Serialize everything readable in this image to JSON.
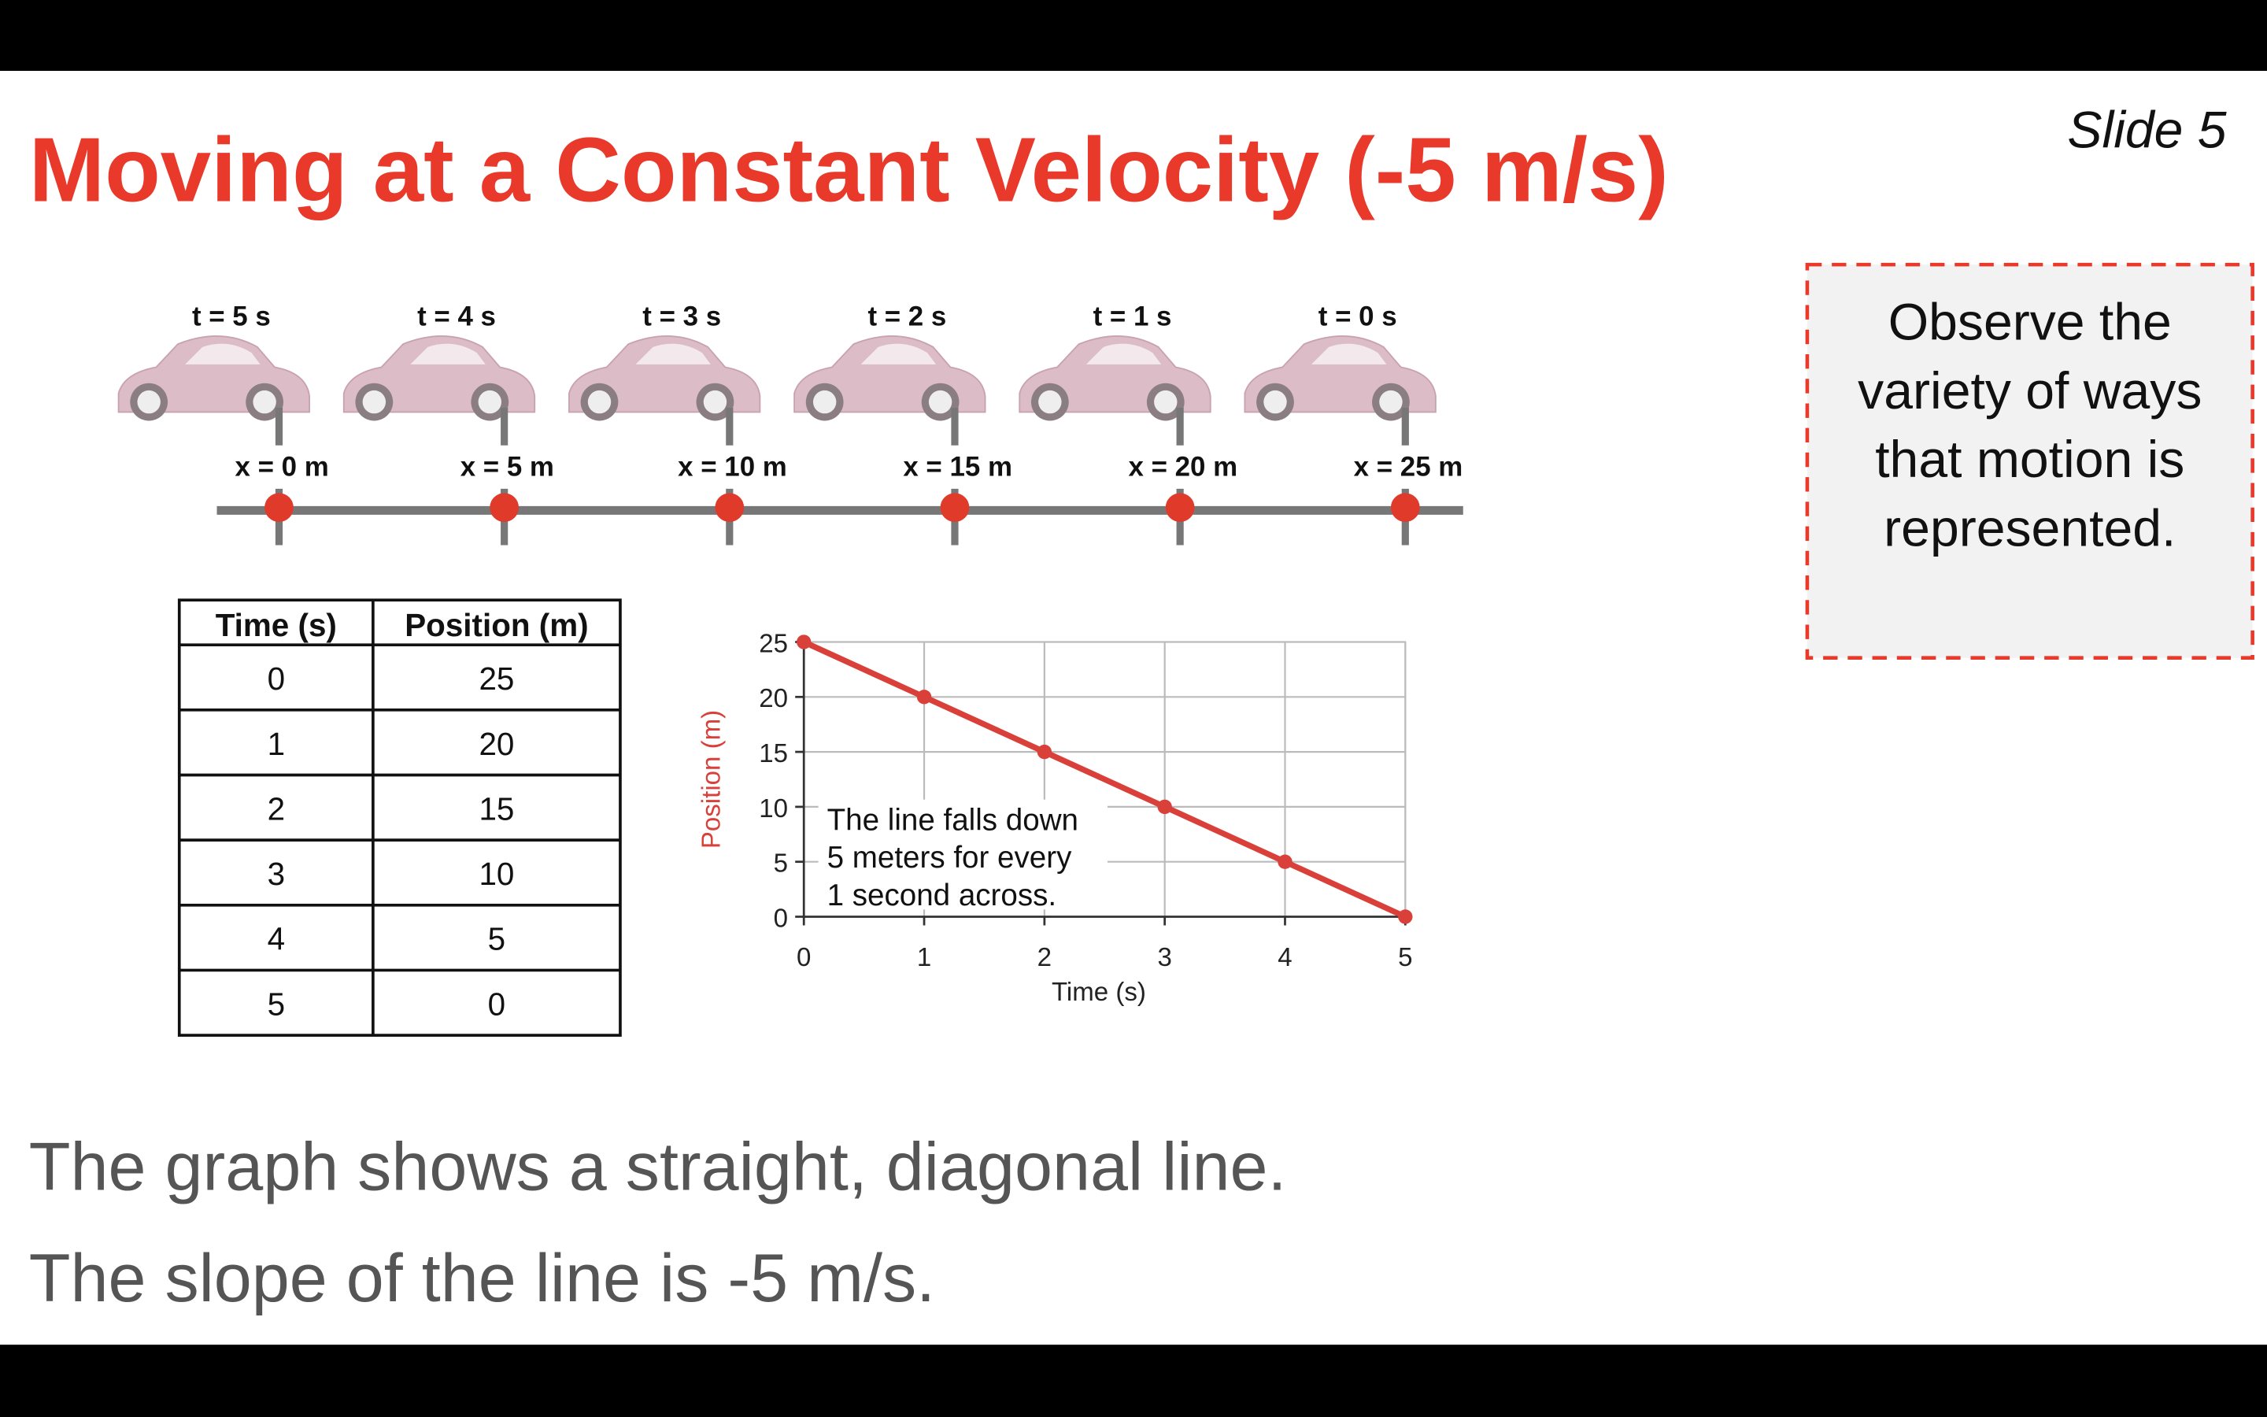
{
  "title": "Moving at a Constant Velocity (-5 m/s)",
  "slide_label": "Slide 5",
  "note": [
    "Observe the",
    "variety of ways",
    "that motion is",
    "represented."
  ],
  "motion_diagram": {
    "times": [
      "t = 5 s",
      "t = 4 s",
      "t = 3 s",
      "t = 2 s",
      "t = 1 s",
      "t = 0 s"
    ],
    "positions": [
      "x = 0 m",
      "x = 5 m",
      "x = 10 m",
      "x = 15 m",
      "x = 20 m",
      "x = 25 m"
    ]
  },
  "table": {
    "header": [
      "Time (s)",
      "Position (m)"
    ],
    "rows": [
      [
        0,
        25
      ],
      [
        1,
        20
      ],
      [
        2,
        15
      ],
      [
        3,
        10
      ],
      [
        4,
        5
      ],
      [
        5,
        0
      ]
    ]
  },
  "graph": {
    "type": "line",
    "x": [
      0,
      1,
      2,
      3,
      4,
      5
    ],
    "values": [
      25,
      20,
      15,
      10,
      5,
      0
    ],
    "xlabel": "Time (s)",
    "ylabel": "Position (m)",
    "color": "#d9403a",
    "xlim": [
      0,
      5
    ],
    "ylim": [
      0,
      25
    ],
    "xticks": [
      0,
      1,
      2,
      3,
      4,
      5
    ],
    "yticks": [
      0,
      5,
      10,
      15,
      20,
      25
    ],
    "grid": true,
    "annotation": [
      "The line falls down",
      "5 meters for every",
      "1 second across."
    ]
  },
  "body": [
    "The graph shows a straight, diagonal line.",
    "The slope of the line is -5 m/s."
  ]
}
